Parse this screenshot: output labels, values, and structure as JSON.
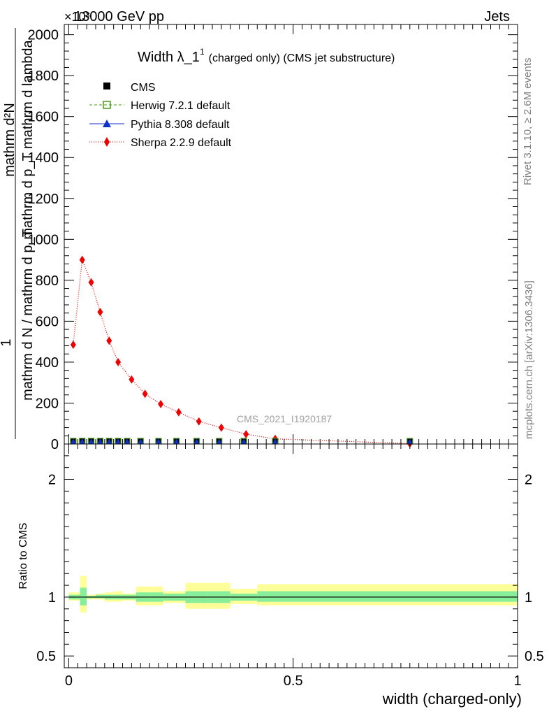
{
  "header": {
    "left": "13000 GeV pp",
    "right": "Jets",
    "exponent": "×10³"
  },
  "side": {
    "rivet": "Rivet 3.1.10, ≥ 2.6M events",
    "mcplots": "mcplots.cern.ch [arXiv:1306.3436]"
  },
  "chart_data": [
    {
      "type": "line",
      "title": "Width λ_1¹ (charged only) (CMS jet substructure)",
      "title_main": "Width λ_1",
      "title_sup": "1",
      "title_rest": "(charged only) (CMS jet substructure)",
      "ylabel_top": "mathrm d²N",
      "ylabel_top2": "mathrm d p_T mathrm d lambda",
      "ylabel_one": "1",
      "ylabel_bottom": "mathrm d N / mathrm d p_T",
      "ylim": [
        0,
        2050
      ],
      "xlim": [
        -0.01,
        1.0
      ],
      "y_ticks": [
        0,
        200,
        400,
        600,
        800,
        1000,
        1200,
        1400,
        1600,
        1800,
        2000
      ],
      "y_tick_labels": [
        "0",
        "200",
        "400",
        "600",
        "800",
        "1000",
        "1200",
        "1400",
        "1600",
        "1800",
        "2000"
      ],
      "watermark": "CMS_2021_I1920187",
      "legend_placement": "top-left",
      "legend": [
        {
          "label": "CMS",
          "color": "#000000",
          "marker": "square"
        },
        {
          "label": "Herwig 7.2.1 default",
          "color": "#4a9a16",
          "marker": "open-square"
        },
        {
          "label": "Pythia 8.308 default",
          "color": "#1030c8",
          "marker": "triangle"
        },
        {
          "label": "Sherpa 2.2.9 default",
          "color": "#ee0000",
          "marker": "diamond"
        }
      ],
      "series": [
        {
          "name": "Sherpa 2.2.9 default",
          "color": "#ee0000",
          "x": [
            0.01,
            0.03,
            0.05,
            0.07,
            0.09,
            0.11,
            0.14,
            0.17,
            0.205,
            0.245,
            0.29,
            0.34,
            0.395,
            0.46,
            0.76
          ],
          "y": [
            485,
            900,
            790,
            645,
            505,
            400,
            315,
            245,
            195,
            155,
            110,
            80,
            48,
            25,
            2
          ]
        },
        {
          "name": "CMS",
          "color": "#000000",
          "x": [
            0.01,
            0.03,
            0.05,
            0.07,
            0.09,
            0.11,
            0.13,
            0.16,
            0.2,
            0.24,
            0.285,
            0.335,
            0.39,
            0.46,
            0.76
          ],
          "y": [
            0.6,
            0.9,
            0.8,
            0.7,
            0.6,
            0.5,
            0.45,
            0.35,
            0.3,
            0.25,
            0.2,
            0.15,
            0.1,
            0.05,
            0.01
          ]
        }
      ]
    },
    {
      "type": "area",
      "ylabel": "Ratio to CMS",
      "xlabel": "width (charged-only)",
      "xlim": [
        -0.01,
        1.0
      ],
      "ylim": [
        0.4,
        2.3
      ],
      "y_ticks": [
        0.5,
        1,
        2
      ],
      "y_tick_labels": [
        "0.5",
        "1",
        "2"
      ],
      "x_ticks": [
        0,
        0.5,
        1
      ],
      "x_tick_labels": [
        "0",
        "0.5",
        "1"
      ],
      "reference": 1,
      "bands": {
        "edges": [
          0.0,
          0.025,
          0.04,
          0.06,
          0.08,
          0.1,
          0.12,
          0.15,
          0.18,
          0.21,
          0.26,
          0.31,
          0.36,
          0.42,
          1.0
        ],
        "yellow_lo": [
          0.97,
          0.87,
          0.98,
          0.98,
          0.96,
          0.96,
          0.97,
          0.93,
          0.93,
          0.95,
          0.9,
          0.9,
          0.94,
          0.93
        ],
        "yellow_hi": [
          1.04,
          1.18,
          1.02,
          1.03,
          1.04,
          1.05,
          1.03,
          1.09,
          1.09,
          1.05,
          1.12,
          1.12,
          1.07,
          1.11
        ],
        "green_lo": [
          0.98,
          0.93,
          0.99,
          0.99,
          0.98,
          0.98,
          0.98,
          0.96,
          0.96,
          0.97,
          0.95,
          0.95,
          0.97,
          0.96
        ],
        "green_hi": [
          1.02,
          1.08,
          1.01,
          1.02,
          1.02,
          1.02,
          1.02,
          1.04,
          1.04,
          1.03,
          1.05,
          1.05,
          1.03,
          1.05
        ]
      }
    }
  ]
}
